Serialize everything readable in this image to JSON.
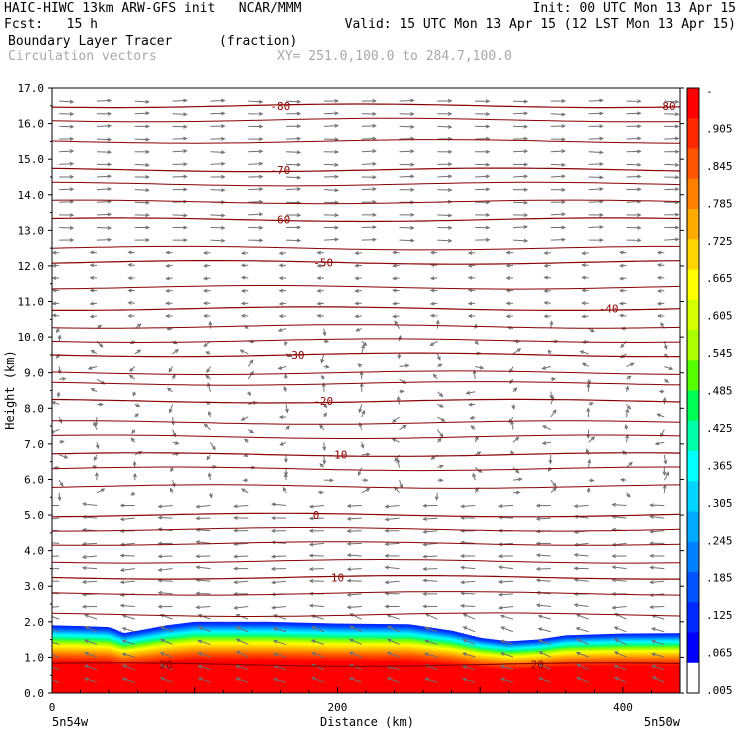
{
  "header": {
    "line1_left": "HAIC-HIWC 13km ARW-GFS init   NCAR/MMM",
    "line1_right": "Init: 00 UTC Mon 13 Apr 15",
    "fcst": "Fcst:   15 h",
    "valid": "Valid: 15 UTC Mon 13 Apr 15 (12 LST Mon 13 Apr 15)",
    "field_name": "Boundary Layer Tracer",
    "field_units": "(fraction)",
    "vector_name": "Circulation vectors",
    "xy_range": "XY= 251.0,100.0 to 284.7,100.0"
  },
  "chart_data": {
    "type": "heatmap",
    "title": "Boundary Layer Tracer (fraction)",
    "xlabel": "Distance (km)",
    "ylabel": "Height (km)",
    "xlim": [
      0,
      440
    ],
    "ylim": [
      0,
      17
    ],
    "x_ticks": [
      {
        "value": 0,
        "label": "0"
      },
      {
        "value": 200,
        "label": "200"
      },
      {
        "value": 400,
        "label": "400"
      }
    ],
    "x_end_labels": {
      "left": "5n54w",
      "right": "5n50w"
    },
    "y_ticks": [
      {
        "value": 0,
        "label": "0.0"
      },
      {
        "value": 1,
        "label": "1.0"
      },
      {
        "value": 2,
        "label": "2.0"
      },
      {
        "value": 3,
        "label": "3.0"
      },
      {
        "value": 4,
        "label": "4.0"
      },
      {
        "value": 5,
        "label": "5.0"
      },
      {
        "value": 6,
        "label": "6.0"
      },
      {
        "value": 7,
        "label": "7.0"
      },
      {
        "value": 8,
        "label": "8.0"
      },
      {
        "value": 9,
        "label": "9.0"
      },
      {
        "value": 10,
        "label": "10.0"
      },
      {
        "value": 11,
        "label": "11.0"
      },
      {
        "value": 12,
        "label": "12.0"
      },
      {
        "value": 13,
        "label": "13.0"
      },
      {
        "value": 14,
        "label": "14.0"
      },
      {
        "value": 15,
        "label": "15.0"
      },
      {
        "value": 16,
        "label": "16.0"
      },
      {
        "value": 17,
        "label": "17.0"
      }
    ],
    "colorbar": {
      "labels": [
        "-",
        ".905",
        ".845",
        ".785",
        ".725",
        ".665",
        ".605",
        ".545",
        ".485",
        ".425",
        ".365",
        ".305",
        ".245",
        ".185",
        ".125",
        ".065",
        ".005"
      ],
      "colors_top_to_bottom": [
        "#ff0000",
        "#ff2a00",
        "#ff5500",
        "#ff8000",
        "#ffaa00",
        "#ffd400",
        "#ffff00",
        "#d4ff00",
        "#aaff00",
        "#55ff00",
        "#00ff55",
        "#00ffaa",
        "#00ffff",
        "#00d4ff",
        "#00aaff",
        "#0080ff",
        "#0055ff",
        "#002aff",
        "#0000ff",
        "#ffffff"
      ]
    },
    "tracer_top_km": [
      [
        0,
        1.9
      ],
      [
        20,
        1.88
      ],
      [
        40,
        1.85
      ],
      [
        50,
        1.68
      ],
      [
        60,
        1.75
      ],
      [
        80,
        1.9
      ],
      [
        100,
        2.0
      ],
      [
        150,
        2.0
      ],
      [
        200,
        1.95
      ],
      [
        250,
        1.93
      ],
      [
        280,
        1.75
      ],
      [
        300,
        1.55
      ],
      [
        320,
        1.45
      ],
      [
        340,
        1.5
      ],
      [
        360,
        1.62
      ],
      [
        400,
        1.67
      ],
      [
        440,
        1.68
      ]
    ],
    "temperature_contours_C": [
      {
        "value": -80,
        "label": "-80",
        "height_km": 16.5
      },
      {
        "value": -70,
        "label": "-70",
        "height_km": 14.7
      },
      {
        "value": -60,
        "label": "-60",
        "height_km": 13.3
      },
      {
        "value": -50,
        "label": "-50",
        "height_km": 12.1
      },
      {
        "value": -40,
        "label": "-40",
        "height_km": 10.8
      },
      {
        "value": -30,
        "label": "-30",
        "height_km": 9.5
      },
      {
        "value": -20,
        "label": "-20",
        "height_km": 8.2
      },
      {
        "value": -10,
        "label": "-10",
        "height_km": 6.7
      },
      {
        "value": 0,
        "label": "0",
        "height_km": 5.0
      },
      {
        "value": 10,
        "label": "10",
        "height_km": 3.25
      },
      {
        "value": 20,
        "label": "20",
        "height_km": 0.8
      }
    ],
    "extra_contours_height_km": [
      16.1,
      15.5,
      14.3,
      13.8,
      12.5,
      11.4,
      10.3,
      9.9,
      9.0,
      8.7,
      7.6,
      7.2,
      6.3,
      5.8,
      4.6,
      4.2,
      3.7,
      2.8,
      2.2
    ],
    "vector_regimes": [
      {
        "from_km": 12.5,
        "to_km": 17.0,
        "direction": "east",
        "strength": 1.0
      },
      {
        "from_km": 10.5,
        "to_km": 12.5,
        "direction": "west",
        "strength": 0.45
      },
      {
        "from_km": 5.5,
        "to_km": 10.5,
        "direction": "variable",
        "strength": 0.35
      },
      {
        "from_km": 2.2,
        "to_km": 5.5,
        "direction": "west",
        "strength": 1.0
      },
      {
        "from_km": 0.0,
        "to_km": 2.2,
        "direction": "west-down",
        "strength": 0.9
      }
    ],
    "grid": false
  }
}
